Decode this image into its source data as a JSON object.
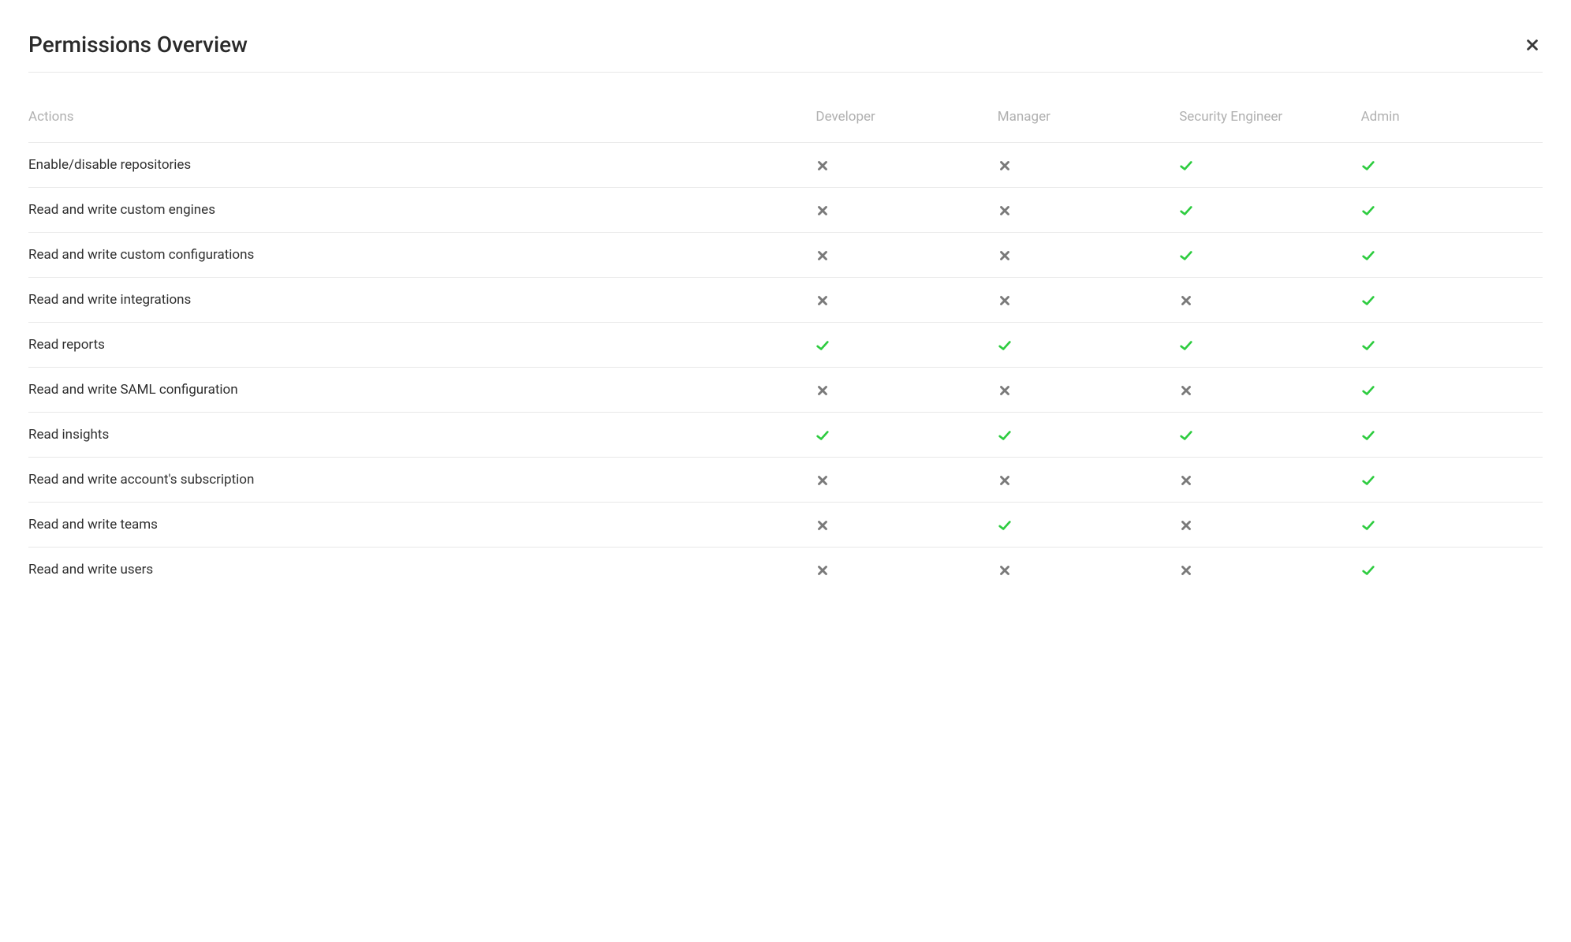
{
  "title": "Permissions Overview",
  "colors": {
    "check": "#2ecc40",
    "cross": "#7a7a7a",
    "header_text": "#b0b0b0",
    "row_text": "#2f2f2f",
    "border": "#e8e8e8",
    "background": "#ffffff"
  },
  "table": {
    "columns": [
      {
        "key": "actions",
        "label": "Actions"
      },
      {
        "key": "developer",
        "label": "Developer"
      },
      {
        "key": "manager",
        "label": "Manager"
      },
      {
        "key": "security_engineer",
        "label": "Security Engineer"
      },
      {
        "key": "admin",
        "label": "Admin"
      }
    ],
    "rows": [
      {
        "action": "Enable/disable repositories",
        "developer": false,
        "manager": false,
        "security_engineer": true,
        "admin": true
      },
      {
        "action": "Read and write custom engines",
        "developer": false,
        "manager": false,
        "security_engineer": true,
        "admin": true
      },
      {
        "action": "Read and write custom configurations",
        "developer": false,
        "manager": false,
        "security_engineer": true,
        "admin": true
      },
      {
        "action": "Read and write integrations",
        "developer": false,
        "manager": false,
        "security_engineer": false,
        "admin": true
      },
      {
        "action": "Read reports",
        "developer": true,
        "manager": true,
        "security_engineer": true,
        "admin": true
      },
      {
        "action": "Read and write SAML configuration",
        "developer": false,
        "manager": false,
        "security_engineer": false,
        "admin": true
      },
      {
        "action": "Read insights",
        "developer": true,
        "manager": true,
        "security_engineer": true,
        "admin": true
      },
      {
        "action": "Read and write account's subscription",
        "developer": false,
        "manager": false,
        "security_engineer": false,
        "admin": true
      },
      {
        "action": "Read and write teams",
        "developer": false,
        "manager": true,
        "security_engineer": false,
        "admin": true
      },
      {
        "action": "Read and write users",
        "developer": false,
        "manager": false,
        "security_engineer": false,
        "admin": true
      }
    ]
  }
}
